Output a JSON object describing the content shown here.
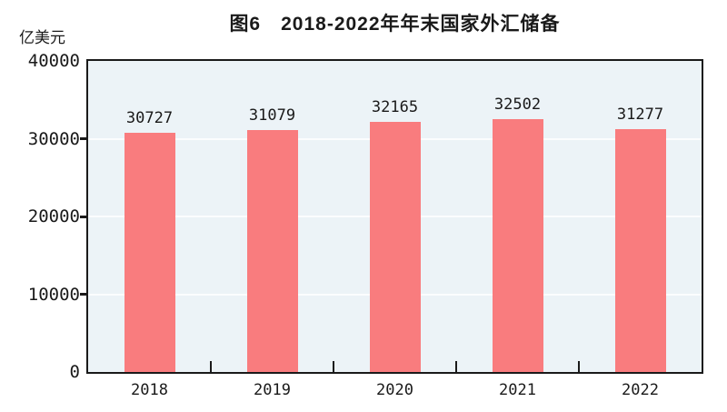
{
  "figure": {
    "title": "图6　2018-2022年年末国家外汇储备",
    "unit_label": "亿美元"
  },
  "chart_data": {
    "type": "bar",
    "categories": [
      "2018",
      "2019",
      "2020",
      "2021",
      "2022"
    ],
    "values": [
      30727,
      31079,
      32165,
      32502,
      31277
    ],
    "title": "图6　2018-2022年年末国家外汇储备",
    "xlabel": "",
    "ylabel": "亿美元",
    "ylim": [
      0,
      40000
    ],
    "yticks": [
      0,
      10000,
      20000,
      30000,
      40000
    ],
    "grid": true,
    "legend": "none",
    "data_labels_shown": true,
    "colors": {
      "bar": "#f97c7e",
      "plot_bg": "#ecf3f7",
      "gridline": "#fbfdfe",
      "axis": "#1a1a1a",
      "text": "#1a1a1a"
    }
  }
}
